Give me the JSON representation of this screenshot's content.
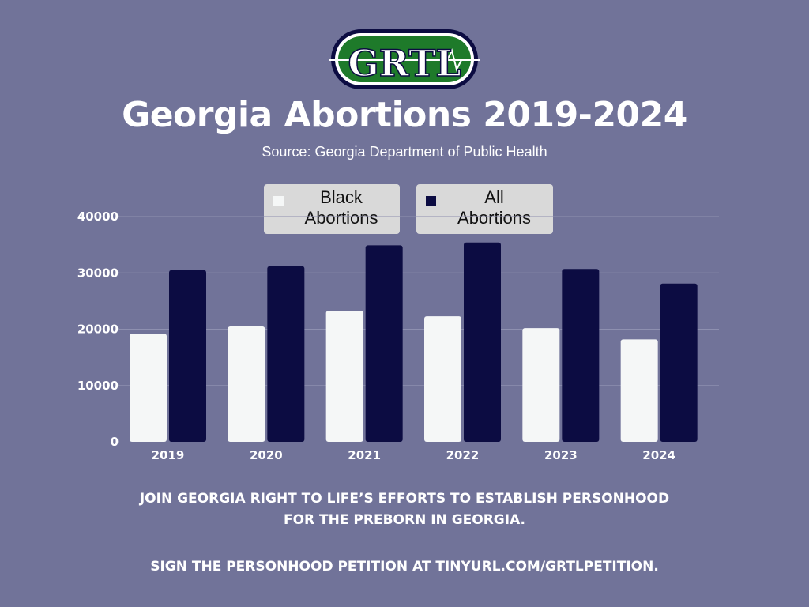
{
  "logo": {
    "text": "GRTL"
  },
  "header": {
    "title": "Georgia Abortions 2019-2024",
    "source": "Source: Georgia Department of Public Health"
  },
  "legend": [
    {
      "label": "Black Abortions",
      "color": "#f5f7f7"
    },
    {
      "label": "All Abortions",
      "color": "#0c0c42"
    }
  ],
  "footer": {
    "line1": "JOIN GEORGIA RIGHT TO LIFE’S EFFORTS TO ESTABLISH PERSONHOOD",
    "line2": "FOR THE PREBORN IN GEORGIA.",
    "line3": "SIGN THE PERSONHOOD PETITION AT TINYURL.COM/GRTLPETITION."
  },
  "colors": {
    "background": "#717399",
    "logo_green": "#1e7a2a",
    "logo_navy": "#0c0c42"
  },
  "chart_data": {
    "type": "bar",
    "title": "Georgia Abortions 2019-2024",
    "categories": [
      "2019",
      "2020",
      "2021",
      "2022",
      "2023",
      "2024"
    ],
    "series": [
      {
        "name": "Black Abortions",
        "values": [
          19200,
          20500,
          23300,
          22300,
          20200,
          18200
        ]
      },
      {
        "name": "All Abortions",
        "values": [
          30500,
          31200,
          34900,
          35400,
          30700,
          28100
        ]
      }
    ],
    "yticks": [
      0,
      10000,
      20000,
      30000,
      40000
    ],
    "ylim": [
      0,
      40000
    ],
    "grid": true,
    "legend_position": "top"
  }
}
